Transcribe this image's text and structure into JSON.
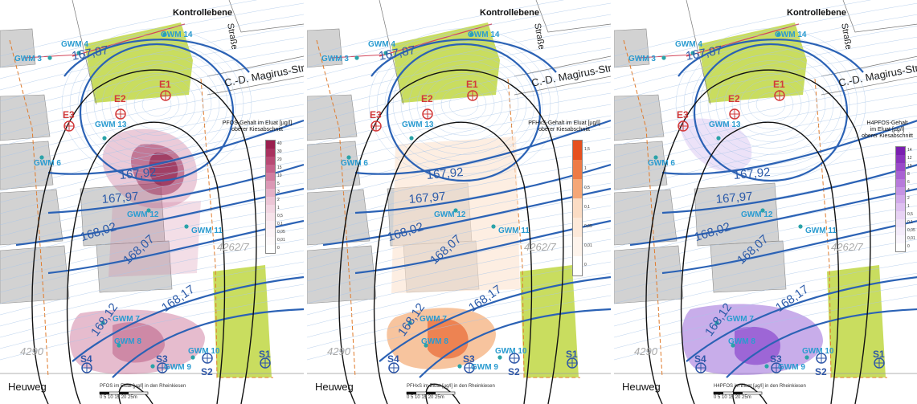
{
  "panels": [
    {
      "legend_title_lines": [
        "PFOS-Gehalt im Eluat [µg/l]",
        "oberer Kiesabschnitt"
      ],
      "legend_ticks": [
        "40",
        "30",
        "20",
        "15",
        "10",
        "5",
        "3",
        "2",
        "1",
        "0,5",
        "0,1",
        "0,05",
        "0,01",
        "0"
      ],
      "legend_colors": [
        "#9a1f4e",
        "#a9325f",
        "#b84a74",
        "#c5628a",
        "#d07d9f",
        "#db98b5",
        "#e4b0c6",
        "#ecc6d6",
        "#f2d6e2",
        "#f6e3ea",
        "#f9ecf1",
        "#fbf3f6",
        "#fdf9fa",
        "#ffffff"
      ],
      "fill_color": "#c76a92",
      "caption": "PFOS im Eluat [µg/l] in den Rheinkiesen"
    },
    {
      "legend_title_lines": [
        "PFHxS-Gehalt im Eluat [µg/l]",
        "oberer Kiesabschnitt"
      ],
      "legend_ticks": [
        "1,5",
        "1",
        "0,5",
        "0,1",
        "0,05",
        "0,01",
        "0"
      ],
      "legend_colors": [
        "#e6501e",
        "#ee7b46",
        "#f5a777",
        "#fbdcc4",
        "#fde9d9",
        "#fef4ec",
        "#ffffff"
      ],
      "fill_color": "#f0944e",
      "caption": "PFHxS im Eluat [µg/l] in den Rheinkiesen"
    },
    {
      "legend_title_lines": [
        "H4PFOS-Gehalt",
        "im Eluat [µg/l]",
        "oberer Kiesabschnitt"
      ],
      "legend_ticks": [
        "14",
        "12",
        "10",
        "8",
        "6",
        "4",
        "2",
        "1",
        "0,5",
        "0,1",
        "0,05",
        "0,01",
        "0"
      ],
      "legend_colors": [
        "#7a1fb0",
        "#8a34bd",
        "#9a4ac8",
        "#a962d2",
        "#b77adb",
        "#c593e3",
        "#d2aaea",
        "#dec0f0",
        "#e8d3f4",
        "#efe1f7",
        "#f4ecfa",
        "#f9f5fc",
        "#ffffff"
      ],
      "fill_color": "#9b6ad8",
      "caption": "H4PFOS im Eluat [µg/l] in den Rheinkiesen"
    }
  ],
  "labels": {
    "kontrollebene": "Kontrollebene",
    "strasse": "Straße",
    "magirus": "C.-D. Magirus-Straße",
    "heuweg": "Heuweg",
    "parcel_a": "4262/7",
    "parcel_b": "4290",
    "scale_text": "0 5 10 15 20 25m"
  },
  "wells": [
    "GWM 3",
    "GWM 4",
    "GWM 14",
    "GWM 13",
    "GWM 6",
    "GWM 12",
    "GWM 11",
    "GWM 7",
    "GWM 8",
    "GWM 9",
    "GWM 10"
  ],
  "isolines": [
    "167,87",
    "167,92",
    "167,97",
    "168,02",
    "168,07",
    "168,12",
    "168,17"
  ],
  "points": [
    "E1",
    "E2",
    "E3",
    "S1",
    "S2",
    "S3",
    "S4"
  ]
}
